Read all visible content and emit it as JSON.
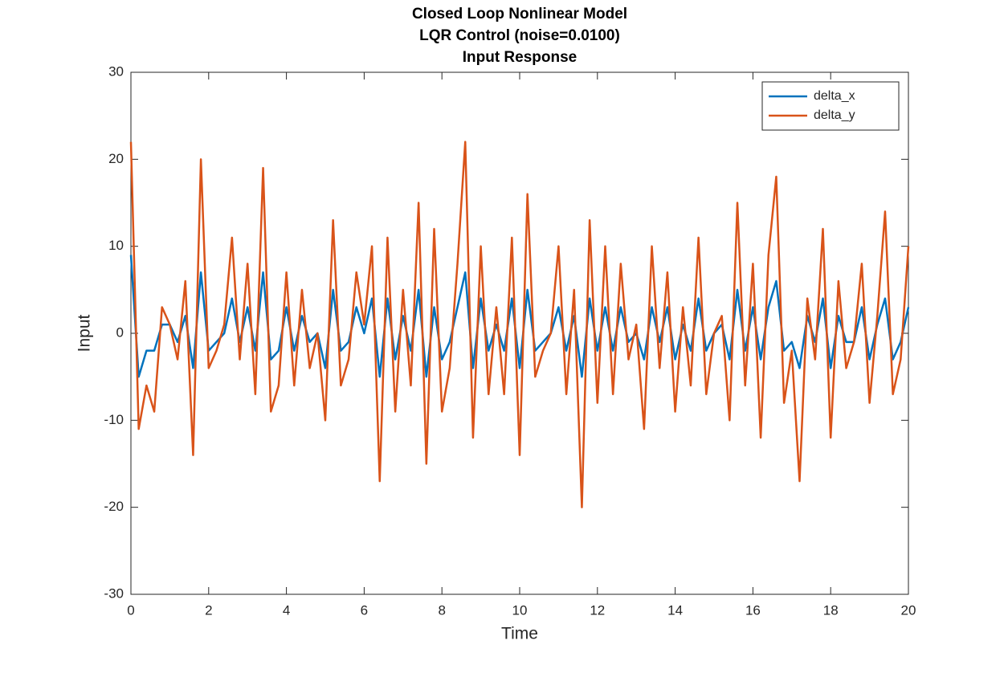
{
  "chart_data": {
    "type": "line",
    "title": [
      "Closed Loop Nonlinear Model",
      "LQR Control (noise=0.0100)",
      "Input Response"
    ],
    "x_label": "Time",
    "y_label": "Input",
    "x": [
      0,
      0.2,
      0.4,
      0.6,
      0.8,
      1,
      1.2,
      1.4,
      1.6,
      1.8,
      2,
      2.2,
      2.4,
      2.6,
      2.8,
      3,
      3.2,
      3.4,
      3.6,
      3.8,
      4,
      4.2,
      4.4,
      4.6,
      4.8,
      5,
      5.2,
      5.4,
      5.6,
      5.8,
      6,
      6.2,
      6.4,
      6.6,
      6.8,
      7,
      7.2,
      7.4,
      7.6,
      7.8,
      8,
      8.2,
      8.4,
      8.6,
      8.8,
      9,
      9.2,
      9.4,
      9.6,
      9.8,
      10,
      10.2,
      10.4,
      10.6,
      10.8,
      11,
      11.2,
      11.4,
      11.6,
      11.8,
      12,
      12.2,
      12.4,
      12.6,
      12.8,
      13,
      13.2,
      13.4,
      13.6,
      13.8,
      14,
      14.2,
      14.4,
      14.6,
      14.8,
      15,
      15.2,
      15.4,
      15.6,
      15.8,
      16,
      16.2,
      16.4,
      16.6,
      16.8,
      17,
      17.2,
      17.4,
      17.6,
      17.8,
      18,
      18.2,
      18.4,
      18.6,
      18.8,
      19,
      19.2,
      19.4,
      19.6,
      19.8,
      20
    ],
    "series": [
      {
        "name": "delta_x",
        "color": "#0072BD",
        "values": [
          9,
          -5,
          -2,
          -2,
          1,
          1,
          -1,
          2,
          -4,
          7,
          -2,
          -1,
          0,
          4,
          -1,
          3,
          -2,
          7,
          -3,
          -2,
          3,
          -2,
          2,
          -1,
          0,
          -4,
          5,
          -2,
          -1,
          3,
          0,
          4,
          -5,
          4,
          -3,
          2,
          -2,
          5,
          -5,
          3,
          -3,
          -1,
          3,
          7,
          -4,
          4,
          -2,
          1,
          -2,
          4,
          -4,
          5,
          -2,
          -1,
          0,
          3,
          -2,
          2,
          -5,
          4,
          -2,
          3,
          -2,
          3,
          -1,
          0,
          -3,
          3,
          -1,
          3,
          -3,
          1,
          -2,
          4,
          -2,
          0,
          1,
          -3,
          5,
          -2,
          3,
          -3,
          3,
          6,
          -2,
          -1,
          -4,
          2,
          -1,
          4,
          -4,
          2,
          -1,
          -1,
          3,
          -3,
          1,
          4,
          -3,
          -1,
          3
        ]
      },
      {
        "name": "delta_y",
        "color": "#D95319",
        "values": [
          22,
          -11,
          -6,
          -9,
          3,
          1,
          -3,
          6,
          -14,
          20,
          -4,
          -2,
          1,
          11,
          -3,
          8,
          -7,
          19,
          -9,
          -6,
          7,
          -6,
          5,
          -4,
          0,
          -10,
          13,
          -6,
          -3,
          7,
          1,
          10,
          -17,
          11,
          -9,
          5,
          -6,
          15,
          -15,
          12,
          -9,
          -4,
          8,
          22,
          -12,
          10,
          -7,
          3,
          -7,
          11,
          -14,
          16,
          -5,
          -2,
          0,
          10,
          -7,
          5,
          -20,
          13,
          -8,
          10,
          -7,
          8,
          -3,
          1,
          -11,
          10,
          -4,
          7,
          -9,
          3,
          -6,
          11,
          -7,
          0,
          2,
          -10,
          15,
          -6,
          8,
          -12,
          9,
          18,
          -8,
          -2,
          -17,
          4,
          -3,
          12,
          -12,
          6,
          -4,
          -1,
          8,
          -8,
          2,
          14,
          -7,
          -3,
          10
        ]
      }
    ],
    "xlim": [
      0,
      20
    ],
    "xticks": [
      0,
      2,
      4,
      6,
      8,
      10,
      12,
      14,
      16,
      18,
      20
    ],
    "ylim": [
      -30,
      30
    ],
    "yticks": [
      -30,
      -20,
      -10,
      0,
      10,
      20,
      30
    ],
    "legend": "top-right"
  }
}
